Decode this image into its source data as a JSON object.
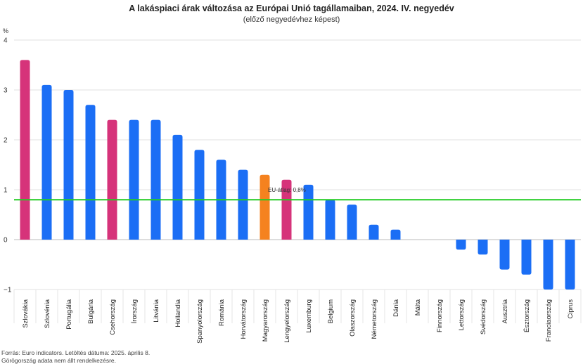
{
  "chart_data": {
    "type": "bar",
    "title": "A lakáspiaci árak változása az Európai Unió tagállamaiban, 2024. IV. negyedév",
    "subtitle": "(előző negyedévhez képest)",
    "ylabel": "%",
    "ylim": [
      -1,
      4
    ],
    "yticks": [
      4,
      3,
      2,
      1,
      0,
      -1
    ],
    "grid": true,
    "categories": [
      "Szlovákia",
      "Szlovénia",
      "Portugália",
      "Bulgária",
      "Csehország",
      "Írország",
      "Litvánia",
      "Hollandia",
      "Spanyolország",
      "Románia",
      "Horvátország",
      "Magyarország",
      "Lengyelország",
      "Luxemburg",
      "Belgium",
      "Olaszország",
      "Németország",
      "Dánia",
      "Málta",
      "Finnország",
      "Lettország",
      "Svédország",
      "Ausztria",
      "Észtország",
      "Franciaország",
      "Ciprus"
    ],
    "values": [
      3.6,
      3.1,
      3.0,
      2.7,
      2.4,
      2.4,
      2.4,
      2.1,
      1.8,
      1.6,
      1.4,
      1.3,
      1.2,
      1.1,
      0.8,
      0.7,
      0.3,
      0.2,
      0.0,
      0.0,
      -0.2,
      -0.3,
      -0.6,
      -0.7,
      -1.0,
      -1.0
    ],
    "bar_colors": [
      "#d6337a",
      "#1b6ef5",
      "#1b6ef5",
      "#1b6ef5",
      "#d6337a",
      "#1b6ef5",
      "#1b6ef5",
      "#1b6ef5",
      "#1b6ef5",
      "#1b6ef5",
      "#1b6ef5",
      "#f5821f",
      "#d6337a",
      "#1b6ef5",
      "#1b6ef5",
      "#1b6ef5",
      "#1b6ef5",
      "#1b6ef5",
      "#1b6ef5",
      "#1b6ef5",
      "#1b6ef5",
      "#1b6ef5",
      "#1b6ef5",
      "#1b6ef5",
      "#1b6ef5",
      "#1b6ef5"
    ],
    "reference_line": {
      "label": "EU-átlag: 0,8%",
      "value": 0.8,
      "color": "#22cc22"
    }
  },
  "footer": {
    "source": "Forrás: Euro indicators. Letöltés dátuma: 2025. április 8.",
    "note": "Görögország adata nem állt rendelkezésre."
  }
}
